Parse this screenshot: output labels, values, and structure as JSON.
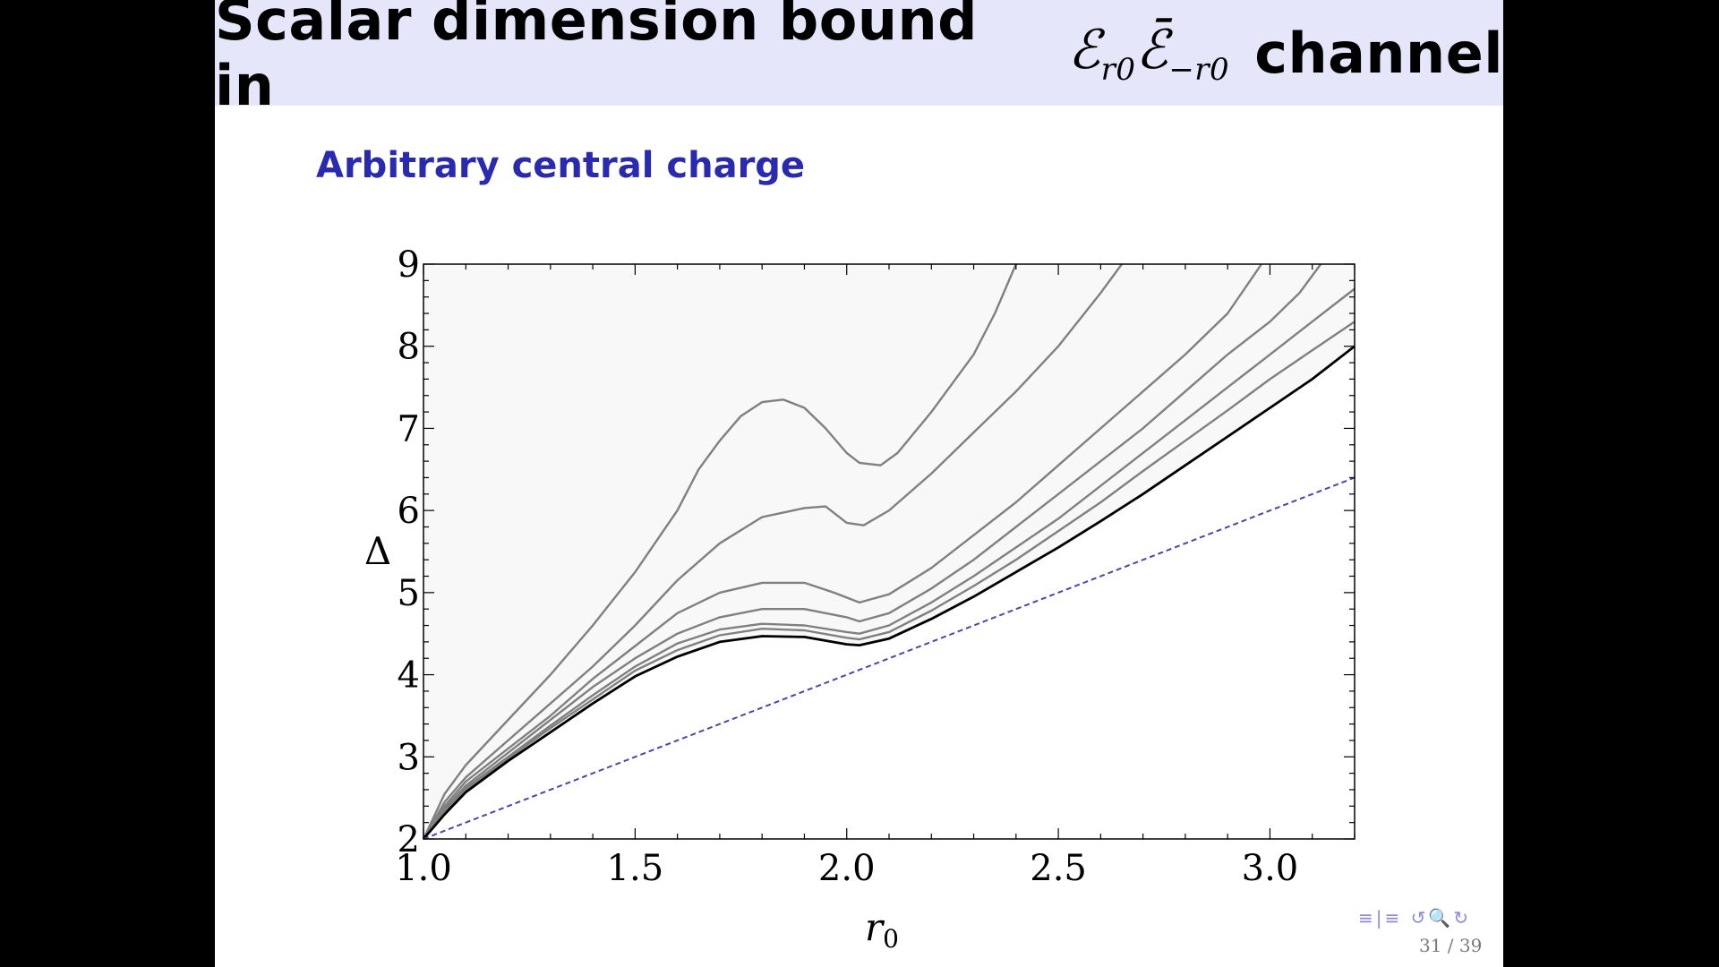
{
  "slide": {
    "title_prefix": "Scalar dimension bound in",
    "title_math_main": "ℰ",
    "title_math_sub1": "r0",
    "title_math_main2": "ℰ̄",
    "title_math_sub2": "−r0",
    "title_suffix": "channel",
    "subtitle": "Arbitrary central charge",
    "page_number": "31 / 39",
    "nav_icons": [
      "nav-section-icon",
      "nav-subsection-icon",
      "nav-back-icon",
      "nav-search-icon",
      "nav-forward-icon"
    ],
    "nav_symbols": "≡|≡  ↺🔍↻",
    "accent_color": "#2a2ab0",
    "title_bar_color": "#e6e6fb"
  },
  "chart_data": {
    "type": "line",
    "xlabel": "r0",
    "ylabel": "Δ",
    "xlim": [
      1.0,
      3.2
    ],
    "ylim": [
      2,
      9
    ],
    "xticks": [
      "1.0",
      "1.5",
      "2.0",
      "2.5",
      "3.0"
    ],
    "xtick_values": [
      1.0,
      1.5,
      2.0,
      2.5,
      3.0
    ],
    "yticks": [
      "2",
      "3",
      "4",
      "5",
      "6",
      "7",
      "8",
      "9"
    ],
    "ytick_values": [
      2,
      3,
      4,
      5,
      6,
      7,
      8,
      9
    ],
    "grid": false,
    "legend": "none",
    "series": [
      {
        "color": "#808080",
        "points": [
          [
            1.0,
            2.0
          ],
          [
            1.05,
            2.55
          ],
          [
            1.1,
            2.9
          ],
          [
            1.2,
            3.45
          ],
          [
            1.3,
            4.0
          ],
          [
            1.4,
            4.6
          ],
          [
            1.5,
            5.25
          ],
          [
            1.6,
            6.0
          ],
          [
            1.65,
            6.5
          ],
          [
            1.7,
            6.85
          ],
          [
            1.75,
            7.15
          ],
          [
            1.8,
            7.32
          ],
          [
            1.85,
            7.35
          ],
          [
            1.9,
            7.25
          ],
          [
            1.95,
            7.0
          ],
          [
            2.0,
            6.7
          ],
          [
            2.03,
            6.58
          ],
          [
            2.08,
            6.55
          ],
          [
            2.12,
            6.7
          ],
          [
            2.2,
            7.2
          ],
          [
            2.3,
            7.9
          ],
          [
            2.35,
            8.4
          ],
          [
            2.4,
            9.0
          ]
        ]
      },
      {
        "color": "#808080",
        "points": [
          [
            1.0,
            2.0
          ],
          [
            1.05,
            2.45
          ],
          [
            1.1,
            2.75
          ],
          [
            1.2,
            3.2
          ],
          [
            1.3,
            3.65
          ],
          [
            1.4,
            4.1
          ],
          [
            1.5,
            4.6
          ],
          [
            1.6,
            5.15
          ],
          [
            1.7,
            5.6
          ],
          [
            1.8,
            5.92
          ],
          [
            1.9,
            6.03
          ],
          [
            1.95,
            6.05
          ],
          [
            2.0,
            5.85
          ],
          [
            2.04,
            5.82
          ],
          [
            2.1,
            6.0
          ],
          [
            2.2,
            6.45
          ],
          [
            2.3,
            6.95
          ],
          [
            2.4,
            7.45
          ],
          [
            2.5,
            8.0
          ],
          [
            2.6,
            8.65
          ],
          [
            2.65,
            9.0
          ]
        ]
      },
      {
        "color": "#808080",
        "points": [
          [
            1.0,
            2.0
          ],
          [
            1.05,
            2.4
          ],
          [
            1.1,
            2.7
          ],
          [
            1.2,
            3.1
          ],
          [
            1.3,
            3.5
          ],
          [
            1.4,
            3.95
          ],
          [
            1.5,
            4.35
          ],
          [
            1.6,
            4.75
          ],
          [
            1.7,
            5.0
          ],
          [
            1.8,
            5.12
          ],
          [
            1.9,
            5.12
          ],
          [
            1.97,
            5.0
          ],
          [
            2.03,
            4.88
          ],
          [
            2.1,
            4.98
          ],
          [
            2.2,
            5.3
          ],
          [
            2.3,
            5.7
          ],
          [
            2.4,
            6.1
          ],
          [
            2.5,
            6.55
          ],
          [
            2.6,
            7.0
          ],
          [
            2.7,
            7.45
          ],
          [
            2.8,
            7.9
          ],
          [
            2.9,
            8.4
          ],
          [
            2.98,
            9.0
          ]
        ]
      },
      {
        "color": "#808080",
        "points": [
          [
            1.0,
            2.0
          ],
          [
            1.05,
            2.37
          ],
          [
            1.1,
            2.65
          ],
          [
            1.2,
            3.05
          ],
          [
            1.3,
            3.45
          ],
          [
            1.4,
            3.85
          ],
          [
            1.5,
            4.2
          ],
          [
            1.6,
            4.5
          ],
          [
            1.7,
            4.7
          ],
          [
            1.8,
            4.8
          ],
          [
            1.9,
            4.8
          ],
          [
            2.0,
            4.7
          ],
          [
            2.03,
            4.65
          ],
          [
            2.1,
            4.75
          ],
          [
            2.2,
            5.05
          ],
          [
            2.3,
            5.4
          ],
          [
            2.4,
            5.8
          ],
          [
            2.5,
            6.2
          ],
          [
            2.6,
            6.6
          ],
          [
            2.7,
            7.0
          ],
          [
            2.8,
            7.45
          ],
          [
            2.9,
            7.9
          ],
          [
            3.0,
            8.3
          ],
          [
            3.07,
            8.65
          ],
          [
            3.12,
            9.0
          ]
        ]
      },
      {
        "color": "#808080",
        "points": [
          [
            1.0,
            2.0
          ],
          [
            1.05,
            2.35
          ],
          [
            1.1,
            2.62
          ],
          [
            1.2,
            3.0
          ],
          [
            1.3,
            3.38
          ],
          [
            1.4,
            3.75
          ],
          [
            1.5,
            4.1
          ],
          [
            1.6,
            4.38
          ],
          [
            1.7,
            4.55
          ],
          [
            1.8,
            4.62
          ],
          [
            1.9,
            4.6
          ],
          [
            2.0,
            4.52
          ],
          [
            2.03,
            4.5
          ],
          [
            2.1,
            4.6
          ],
          [
            2.2,
            4.88
          ],
          [
            2.3,
            5.2
          ],
          [
            2.4,
            5.55
          ],
          [
            2.5,
            5.9
          ],
          [
            2.6,
            6.3
          ],
          [
            2.7,
            6.7
          ],
          [
            2.8,
            7.1
          ],
          [
            2.9,
            7.5
          ],
          [
            3.0,
            7.9
          ],
          [
            3.1,
            8.3
          ],
          [
            3.2,
            8.7
          ]
        ]
      },
      {
        "color": "#808080",
        "points": [
          [
            1.0,
            2.0
          ],
          [
            1.05,
            2.33
          ],
          [
            1.1,
            2.6
          ],
          [
            1.2,
            2.98
          ],
          [
            1.3,
            3.35
          ],
          [
            1.4,
            3.7
          ],
          [
            1.5,
            4.05
          ],
          [
            1.6,
            4.3
          ],
          [
            1.7,
            4.48
          ],
          [
            1.8,
            4.56
          ],
          [
            1.9,
            4.54
          ],
          [
            2.0,
            4.45
          ],
          [
            2.03,
            4.43
          ],
          [
            2.1,
            4.52
          ],
          [
            2.2,
            4.78
          ],
          [
            2.3,
            5.08
          ],
          [
            2.4,
            5.4
          ],
          [
            2.5,
            5.75
          ],
          [
            2.6,
            6.1
          ],
          [
            2.7,
            6.48
          ],
          [
            2.8,
            6.85
          ],
          [
            2.9,
            7.22
          ],
          [
            3.0,
            7.6
          ],
          [
            3.1,
            7.95
          ],
          [
            3.2,
            8.3
          ]
        ]
      },
      {
        "color": "#000000",
        "points": [
          [
            1.0,
            2.0
          ],
          [
            1.05,
            2.3
          ],
          [
            1.1,
            2.57
          ],
          [
            1.2,
            2.95
          ],
          [
            1.3,
            3.3
          ],
          [
            1.4,
            3.65
          ],
          [
            1.5,
            3.98
          ],
          [
            1.6,
            4.22
          ],
          [
            1.7,
            4.4
          ],
          [
            1.8,
            4.47
          ],
          [
            1.9,
            4.46
          ],
          [
            2.0,
            4.37
          ],
          [
            2.03,
            4.36
          ],
          [
            2.1,
            4.44
          ],
          [
            2.2,
            4.68
          ],
          [
            2.3,
            4.95
          ],
          [
            2.4,
            5.25
          ],
          [
            2.5,
            5.55
          ],
          [
            2.6,
            5.87
          ],
          [
            2.7,
            6.2
          ],
          [
            2.8,
            6.55
          ],
          [
            2.9,
            6.9
          ],
          [
            3.0,
            7.25
          ],
          [
            3.1,
            7.6
          ],
          [
            3.2,
            8.0
          ]
        ]
      },
      {
        "color": "#4848a8",
        "dashed": true,
        "points": [
          [
            1.0,
            2.0
          ],
          [
            3.2,
            6.4
          ]
        ]
      }
    ]
  }
}
